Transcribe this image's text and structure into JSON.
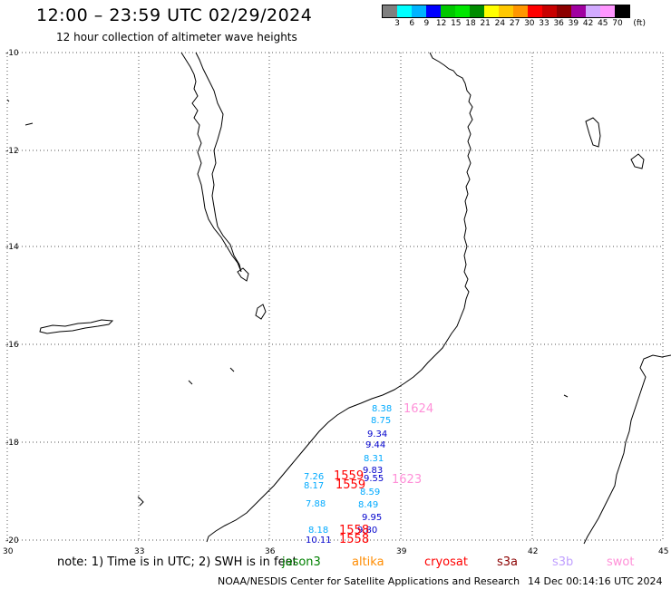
{
  "header": {
    "title": "12:00 – 23:59 UTC 02/29/2024",
    "subtitle": "12 hour collection of altimeter wave heights"
  },
  "legend": {
    "unit": "(ft)",
    "colors": [
      "#7f7f7f",
      "#00ffff",
      "#00b4ff",
      "#0000ff",
      "#00c800",
      "#00e600",
      "#008c00",
      "#ffff00",
      "#ffc800",
      "#ff9600",
      "#ff0000",
      "#c80000",
      "#8c0000",
      "#a000a0",
      "#d2aaff",
      "#ff96ff",
      "#000000"
    ],
    "labels": [
      "3",
      "6",
      "9",
      "12",
      "15",
      "18",
      "21",
      "24",
      "27",
      "30",
      "33",
      "36",
      "39",
      "42",
      "45",
      "70"
    ]
  },
  "axes": {
    "lat_labels": [
      "-10",
      "-12",
      "-14",
      "-16",
      "-18",
      "-20"
    ],
    "lon_labels": [
      "30",
      "33",
      "36",
      "39",
      "42",
      "45"
    ]
  },
  "observations": [
    {
      "text": "8.38",
      "color": "#00aaff"
    },
    {
      "text": "8.75",
      "color": "#00aaff"
    },
    {
      "text": "9.34",
      "color": "#0000cc"
    },
    {
      "text": "9.44",
      "color": "#0000cc"
    },
    {
      "text": "8.31",
      "color": "#00aaff"
    },
    {
      "text": "9.83",
      "color": "#0000cc"
    },
    {
      "text": "9.55",
      "color": "#0000cc"
    },
    {
      "text": "8.59",
      "color": "#00aaff"
    },
    {
      "text": "8.49",
      "color": "#00aaff"
    },
    {
      "text": "9.95",
      "color": "#0000cc"
    },
    {
      "text": "9.80",
      "color": "#0000cc"
    },
    {
      "text": "7.26",
      "color": "#00aaff"
    },
    {
      "text": "8.17",
      "color": "#00aaff"
    },
    {
      "text": "7.88",
      "color": "#00aaff"
    },
    {
      "text": "8.18",
      "color": "#00aaff"
    },
    {
      "text": "10.11",
      "color": "#0000cc"
    },
    {
      "text": "1559",
      "color": "#ff0000"
    },
    {
      "text": "1559",
      "color": "#ff0000"
    },
    {
      "text": "1558",
      "color": "#ff0000"
    },
    {
      "text": "1558",
      "color": "#ff0000"
    },
    {
      "text": "1624",
      "color": "#ff90d8"
    },
    {
      "text": "1623",
      "color": "#ff90d8"
    }
  ],
  "note": "note:  1) Time is in UTC;  2) SWH is in feet",
  "satellites": [
    {
      "name": "jason3",
      "color": "#008000"
    },
    {
      "name": "altika",
      "color": "#ff8c00"
    },
    {
      "name": "cryosat",
      "color": "#ff0000"
    },
    {
      "name": "s3a",
      "color": "#8b0000"
    },
    {
      "name": "s3b",
      "color": "#c0a0ff"
    },
    {
      "name": "swot",
      "color": "#ff90d8"
    }
  ],
  "footer": {
    "source": "NOAA/NESDIS Center for Satellite Applications and Research",
    "generated": "14 Dec 00:14:16 UTC 2024"
  }
}
